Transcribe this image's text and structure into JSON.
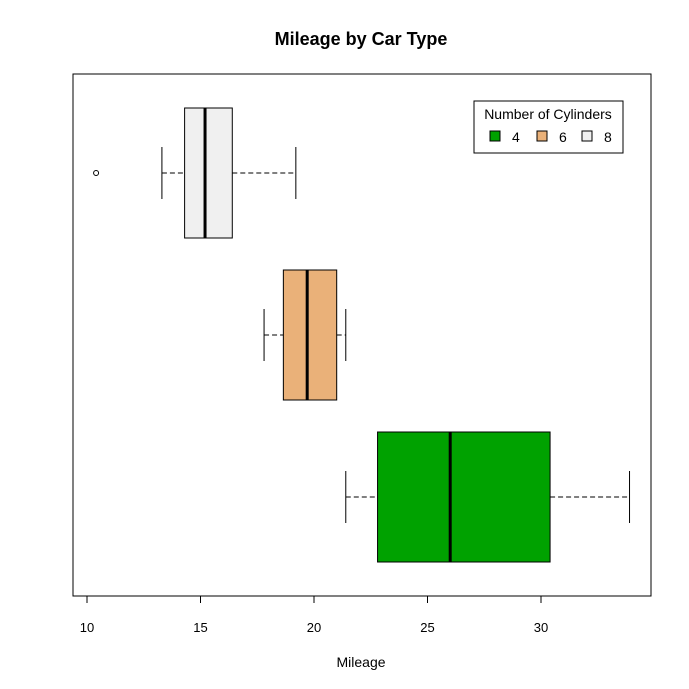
{
  "chart_data": {
    "type": "boxplot",
    "orientation": "horizontal",
    "title": "Mileage by Car Type",
    "xlabel": "Mileage",
    "ylabel": "",
    "xlim": [
      9.5,
      35
    ],
    "xticks": [
      10,
      15,
      20,
      25,
      30
    ],
    "grid": false,
    "legend": {
      "title": "Number of Cylinders",
      "position": "top-right",
      "entries": [
        "4",
        "6",
        "8"
      ]
    },
    "series": [
      {
        "name": "4",
        "color": "#00a200",
        "whisker_low": 21.4,
        "q1": 22.8,
        "median": 26.0,
        "q3": 30.4,
        "whisker_high": 33.9,
        "outliers": []
      },
      {
        "name": "6",
        "color": "#eab179",
        "whisker_low": 17.8,
        "q1": 18.65,
        "median": 19.7,
        "q3": 21.0,
        "whisker_high": 21.4,
        "outliers": []
      },
      {
        "name": "8",
        "color": "#f0f0f0",
        "whisker_low": 13.3,
        "q1": 14.3,
        "median": 15.2,
        "q3": 16.4,
        "whisker_high": 19.2,
        "outliers": [
          10.4
        ]
      }
    ]
  }
}
